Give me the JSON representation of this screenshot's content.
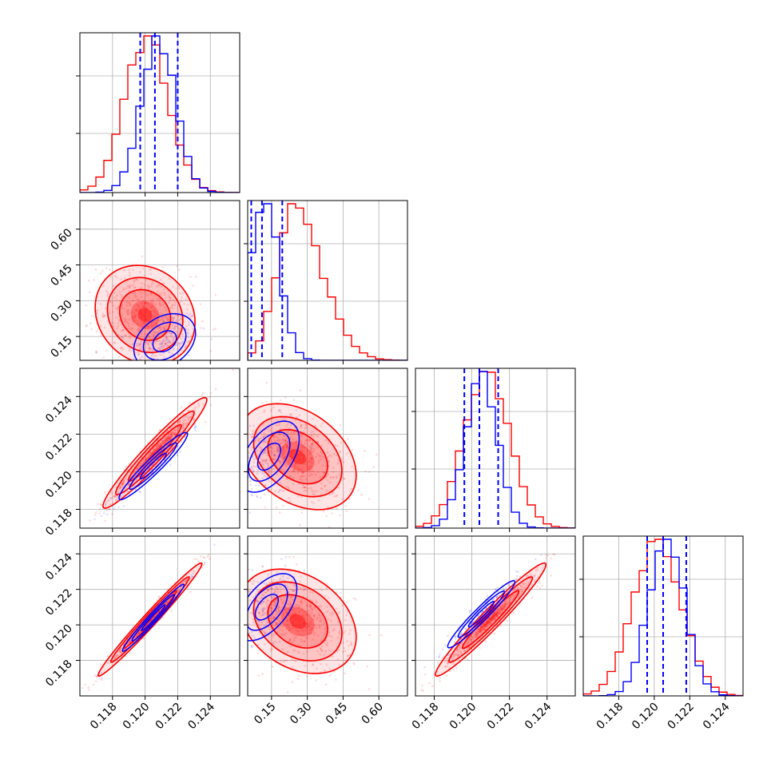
{
  "chart_data": {
    "type": "corner",
    "grid": true,
    "colors": {
      "series_a": "#ff0000",
      "series_b": "#0000ff",
      "grid": "#b0b0b0"
    },
    "series": [
      {
        "color": "#ff0000",
        "style": "histograms, filled 2D density with contours"
      },
      {
        "color": "#0000ff",
        "style": "histograms, contours, dashed quantile lines"
      }
    ],
    "params": [
      {
        "range": [
          0.116,
          0.1258
        ],
        "ticks": [
          0.118,
          0.12,
          0.122,
          0.124
        ],
        "tick_labels": [
          "0.118",
          "0.120",
          "0.122",
          "0.124"
        ]
      },
      {
        "range": [
          0.05,
          0.72
        ],
        "ticks": [
          0.15,
          0.3,
          0.45,
          0.6
        ],
        "tick_labels": [
          "0.15",
          "0.30",
          "0.45",
          "0.60"
        ]
      },
      {
        "range": [
          0.117,
          0.1255
        ],
        "ticks": [
          0.118,
          0.12,
          0.122,
          0.124
        ],
        "tick_labels": [
          "0.118",
          "0.120",
          "0.122",
          "0.124"
        ]
      },
      {
        "range": [
          0.116,
          0.125
        ],
        "ticks": [
          0.118,
          0.12,
          0.122,
          0.124
        ],
        "tick_labels": [
          "0.118",
          "0.120",
          "0.122",
          "0.124"
        ]
      }
    ],
    "marginals": [
      {
        "param": 0,
        "red": {
          "mean": 0.1201,
          "sd": 0.00135
        },
        "blue": {
          "mean": 0.1208,
          "sd": 0.00105
        },
        "blue_quantile_lines": [
          0.1197,
          0.1206,
          0.122
        ]
      },
      {
        "param": 1,
        "red": {
          "mode": 0.24,
          "sd_left": 0.07,
          "sd_right": 0.12
        },
        "blue": {
          "mode": 0.12,
          "sd_left": 0.06,
          "sd_right": 0.06
        },
        "blue_quantile_lines": [
          0.065,
          0.11,
          0.195
        ]
      },
      {
        "param": 2,
        "red": {
          "mean": 0.1208,
          "sd": 0.0012
        },
        "blue": {
          "mean": 0.1205,
          "sd": 0.00085
        },
        "blue_quantile_lines": [
          0.1196,
          0.1204,
          0.1214
        ]
      },
      {
        "param": 3,
        "red": {
          "mean": 0.1202,
          "sd": 0.00135
        },
        "blue": {
          "mean": 0.1207,
          "sd": 0.001
        },
        "blue_quantile_lines": [
          0.1196,
          0.1205,
          0.1218
        ]
      }
    ],
    "joint": [
      {
        "row": 1,
        "col": 0,
        "red": {
          "center": [
            0.12,
            0.24
          ],
          "sd": [
            0.00125,
            0.085
          ],
          "corr": -0.15
        },
        "blue": {
          "center": [
            0.1212,
            0.13
          ],
          "sd": [
            0.0009,
            0.055
          ],
          "corr": 0.3
        }
      },
      {
        "row": 2,
        "col": 0,
        "red": {
          "center": [
            0.1206,
            0.121
          ],
          "sd": [
            0.0013,
            0.0012
          ],
          "corr": 0.96
        },
        "blue": {
          "center": [
            0.1205,
            0.1203
          ],
          "sd": [
            0.001,
            0.00085
          ],
          "corr": 0.95
        }
      },
      {
        "row": 2,
        "col": 1,
        "red": {
          "center": [
            0.26,
            0.1208
          ],
          "sd": [
            0.1,
            0.00115
          ],
          "corr": -0.35
        },
        "blue": {
          "center": [
            0.14,
            0.1208
          ],
          "sd": [
            0.06,
            0.0009
          ],
          "corr": 0.5
        }
      },
      {
        "row": 3,
        "col": 0,
        "red": {
          "center": [
            0.1203,
            0.1203
          ],
          "sd": [
            0.0013,
            0.0013
          ],
          "corr": 0.985
        },
        "blue": {
          "center": [
            0.1205,
            0.1204
          ],
          "sd": [
            0.0009,
            0.0009
          ],
          "corr": 0.98
        }
      },
      {
        "row": 3,
        "col": 1,
        "red": {
          "center": [
            0.26,
            0.1202
          ],
          "sd": [
            0.1,
            0.0012
          ],
          "corr": -0.3
        },
        "blue": {
          "center": [
            0.13,
            0.121
          ],
          "sd": [
            0.06,
            0.0009
          ],
          "corr": 0.55
        }
      },
      {
        "row": 3,
        "col": 2,
        "red": {
          "center": [
            0.121,
            0.1203
          ],
          "sd": [
            0.0012,
            0.0013
          ],
          "corr": 0.97
        },
        "blue": {
          "center": [
            0.1205,
            0.1206
          ],
          "sd": [
            0.00085,
            0.0009
          ],
          "corr": 0.96
        }
      }
    ]
  }
}
